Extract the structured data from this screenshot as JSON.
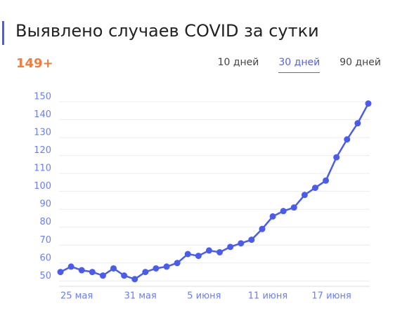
{
  "header": {
    "title": "Выявлено случаев COVID за сутки",
    "summary": "149+"
  },
  "tabs": [
    "10 дней",
    "30 дней",
    "90 дней"
  ],
  "active_tab": 1,
  "chart_data": {
    "type": "line",
    "color": "#4a5cf0",
    "categories": [
      null,
      "25 мая",
      null,
      null,
      null,
      null,
      null,
      "31 мая",
      null,
      null,
      null,
      null,
      null,
      "5 июня",
      null,
      null,
      null,
      null,
      null,
      "11 июня",
      null,
      null,
      null,
      null,
      null,
      "17 июня",
      null,
      null,
      null,
      null
    ],
    "values": [
      55,
      58,
      56,
      55,
      53,
      57,
      53,
      51,
      55,
      57,
      58,
      60,
      65,
      64,
      67,
      66,
      69,
      71,
      73,
      79,
      86,
      89,
      91,
      98,
      102,
      106,
      119,
      129,
      138,
      149
    ],
    "ylim": [
      47,
      150
    ],
    "yticks": [
      50,
      60,
      70,
      80,
      90,
      100,
      110,
      120,
      130,
      140,
      150
    ],
    "grid": true
  }
}
